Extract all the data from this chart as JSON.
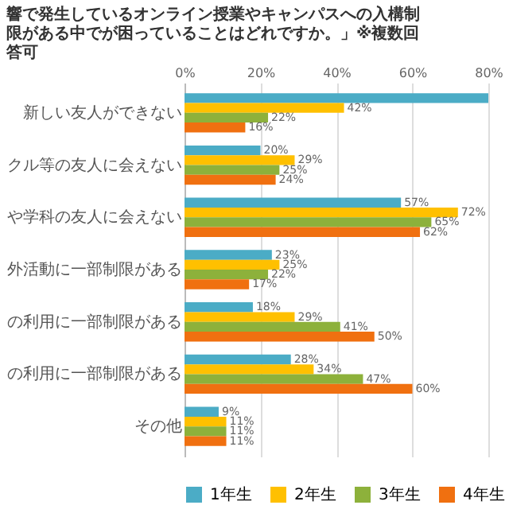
{
  "chart_data": {
    "type": "bar",
    "orientation": "horizontal",
    "title": "響で発生しているオンライン授業やキャンパスへの入構制限がある中でが困っていることはどれですか。」※複数回答可",
    "categories": [
      "新しい友人ができない",
      "クル等の友人に会えない",
      "や学科の友人に会えない",
      "外活動に一部制限がある",
      "の利用に一部制限がある",
      "の利用に一部制限がある",
      "その他"
    ],
    "series": [
      {
        "name": "1年生",
        "color": "#4bacc6",
        "values": [
          80,
          20,
          57,
          23,
          18,
          28,
          9
        ],
        "value_labels": [
          null,
          "20%",
          "57%",
          "23%",
          "18%",
          "28%",
          "9%"
        ]
      },
      {
        "name": "2年生",
        "color": "#ffc000",
        "values": [
          42,
          29,
          72,
          25,
          29,
          34,
          11
        ],
        "value_labels": [
          "42%",
          "29%",
          "72%",
          "25%",
          "29%",
          "34%",
          "11%"
        ]
      },
      {
        "name": "3年生",
        "color": "#8db13b",
        "values": [
          22,
          25,
          65,
          22,
          41,
          47,
          11
        ],
        "value_labels": [
          "22%",
          "25%",
          "65%",
          "22%",
          "41%",
          "47%",
          "11%"
        ]
      },
      {
        "name": "4年生",
        "color": "#f07010",
        "values": [
          16,
          24,
          62,
          17,
          50,
          60,
          11
        ],
        "value_labels": [
          "16%",
          "24%",
          "62%",
          "17%",
          "50%",
          "60%",
          "11%"
        ]
      }
    ],
    "xlim": [
      0,
      80
    ],
    "xticks": [
      {
        "value": 0,
        "label": "0%"
      },
      {
        "value": 20,
        "label": "20%"
      },
      {
        "value": 40,
        "label": "40%"
      },
      {
        "value": 60,
        "label": "60%"
      },
      {
        "value": 80,
        "label": "80%"
      }
    ],
    "grid": "x",
    "legend": "bottom"
  }
}
